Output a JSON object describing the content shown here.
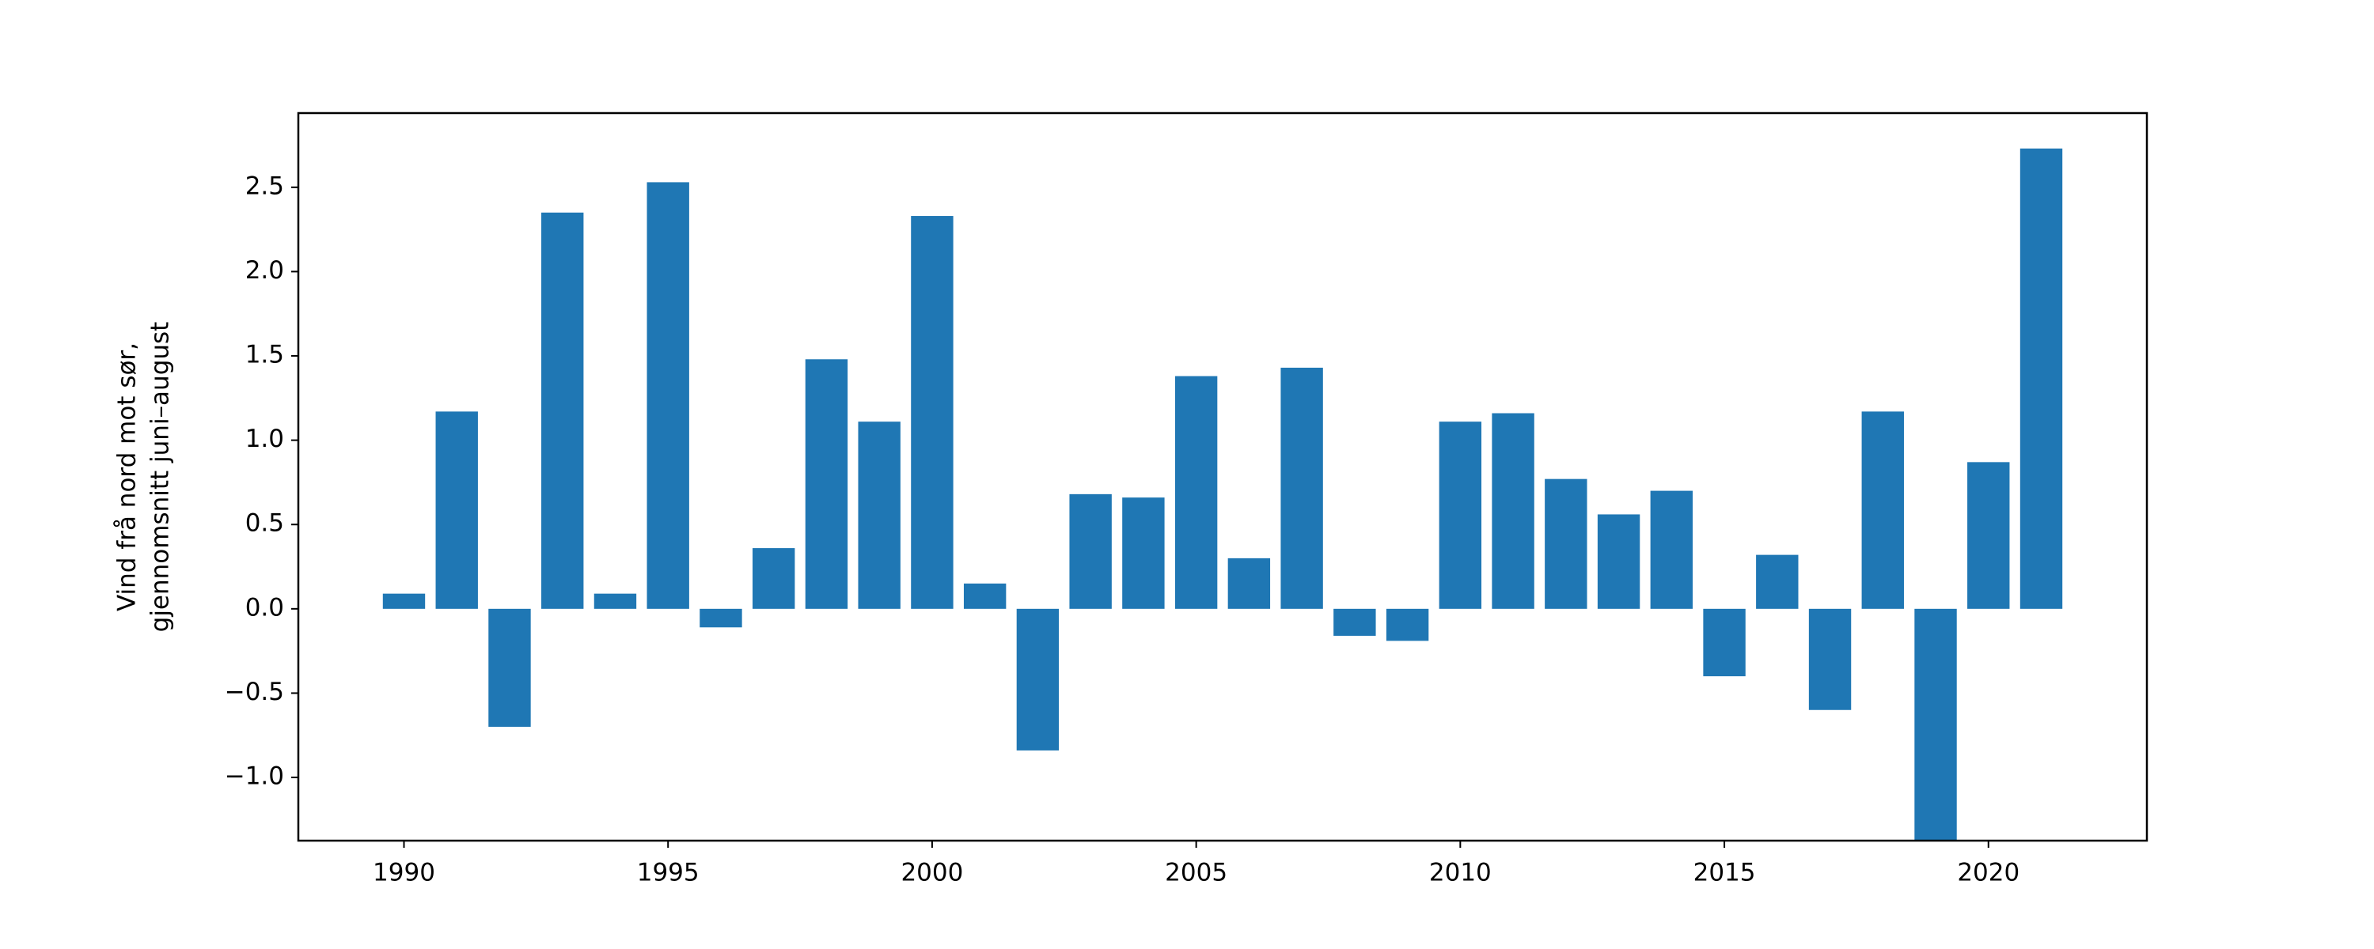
{
  "chart_data": {
    "type": "bar",
    "ylabel": [
      "Vind frå nord mot sør,",
      "gjennomsnitt juni–august"
    ],
    "x": [
      1990,
      1991,
      1992,
      1993,
      1994,
      1995,
      1996,
      1997,
      1998,
      1999,
      2000,
      2001,
      2002,
      2003,
      2004,
      2005,
      2006,
      2007,
      2008,
      2009,
      2010,
      2011,
      2012,
      2013,
      2014,
      2015,
      2016,
      2017,
      2018,
      2019,
      2020,
      2021
    ],
    "values": [
      0.09,
      1.17,
      -0.7,
      2.35,
      0.09,
      2.53,
      -0.11,
      0.36,
      1.48,
      1.11,
      2.33,
      0.15,
      -0.84,
      0.68,
      0.66,
      1.38,
      0.3,
      1.43,
      -0.16,
      -0.19,
      1.11,
      1.16,
      0.77,
      0.56,
      0.7,
      -0.4,
      0.32,
      -0.6,
      1.17,
      -1.45,
      0.87,
      2.73
    ],
    "color": "#1f77b4",
    "bar_width": 0.8,
    "xlim": [
      1988.0,
      2023.0
    ],
    "xticks": [
      1990,
      1995,
      2000,
      2005,
      2010,
      2015,
      2020
    ],
    "ylim": [
      -1.375,
      2.94
    ],
    "yticks": [
      {
        "value": -1,
        "label": "−1.0"
      },
      {
        "value": -0.5,
        "label": "−0.5"
      },
      {
        "value": 0,
        "label": "0.0"
      },
      0.5,
      {
        "value": 1,
        "label": "1.0"
      },
      1.5,
      {
        "value": 2,
        "label": "2.0"
      },
      2.5
    ],
    "grid": false
  }
}
